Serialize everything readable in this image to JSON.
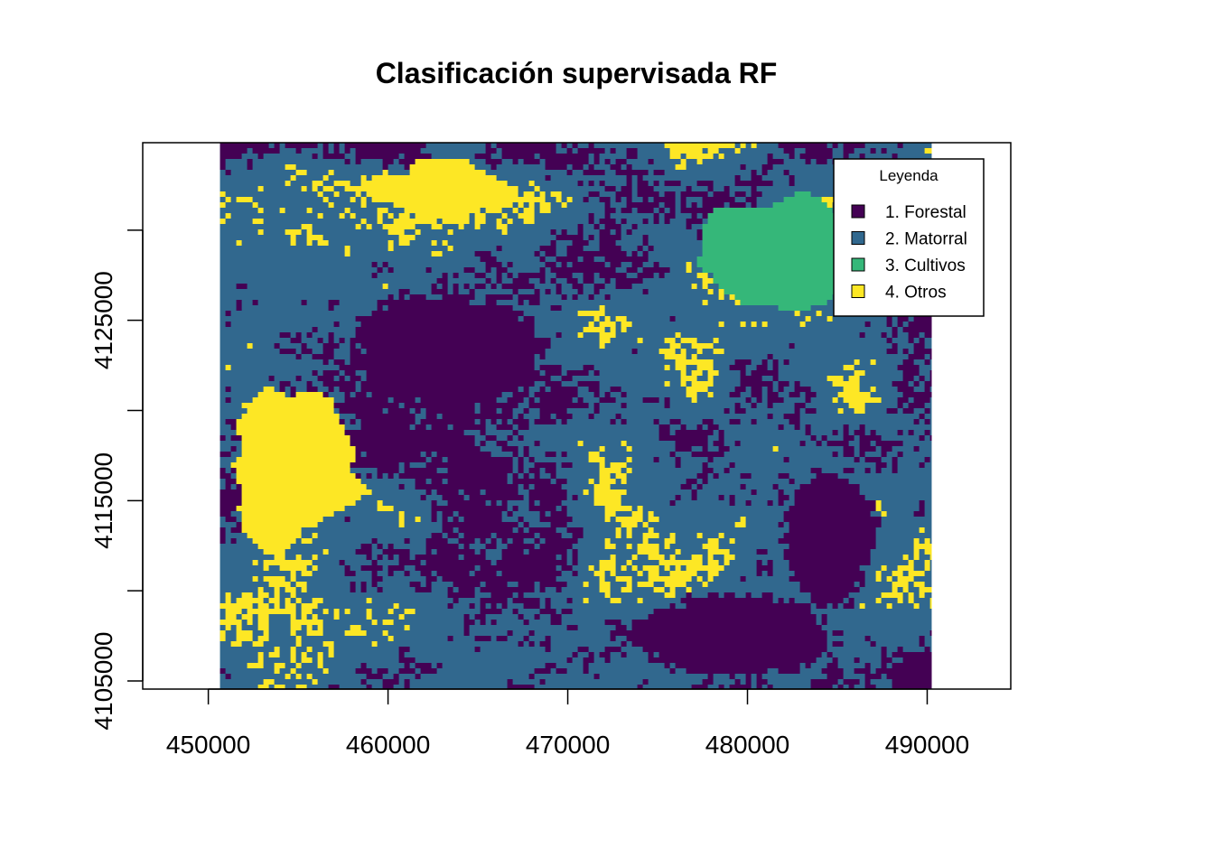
{
  "chart_data": {
    "type": "raster-map",
    "title": "Clasificación supervisada RF",
    "x_ticks": [
      450000,
      460000,
      470000,
      480000,
      490000
    ],
    "x_tick_labels": [
      "450000",
      "460000",
      "470000",
      "480000",
      "490000"
    ],
    "y_ticks": [
      4105000,
      4110000,
      4115000,
      4120000,
      4125000,
      4130000
    ],
    "y_tick_labels": [
      "4105000",
      "",
      "4115000",
      "",
      "4125000",
      ""
    ],
    "xlim": [
      446350,
      494650
    ],
    "ylim": [
      4104550,
      4134850
    ],
    "raster_extent": {
      "xmin": 450650,
      "xmax": 490250,
      "ymin": 4104550,
      "ymax": 4134850
    },
    "legend": {
      "title": "Leyenda",
      "position": "top-right",
      "entries": [
        {
          "label": "1. Forestal",
          "color": "#440154"
        },
        {
          "label": "2. Matorral",
          "color": "#31688e"
        },
        {
          "label": "3. Cultivos",
          "color": "#35b779"
        },
        {
          "label": "4. Otros",
          "color": "#fde725"
        }
      ]
    }
  }
}
